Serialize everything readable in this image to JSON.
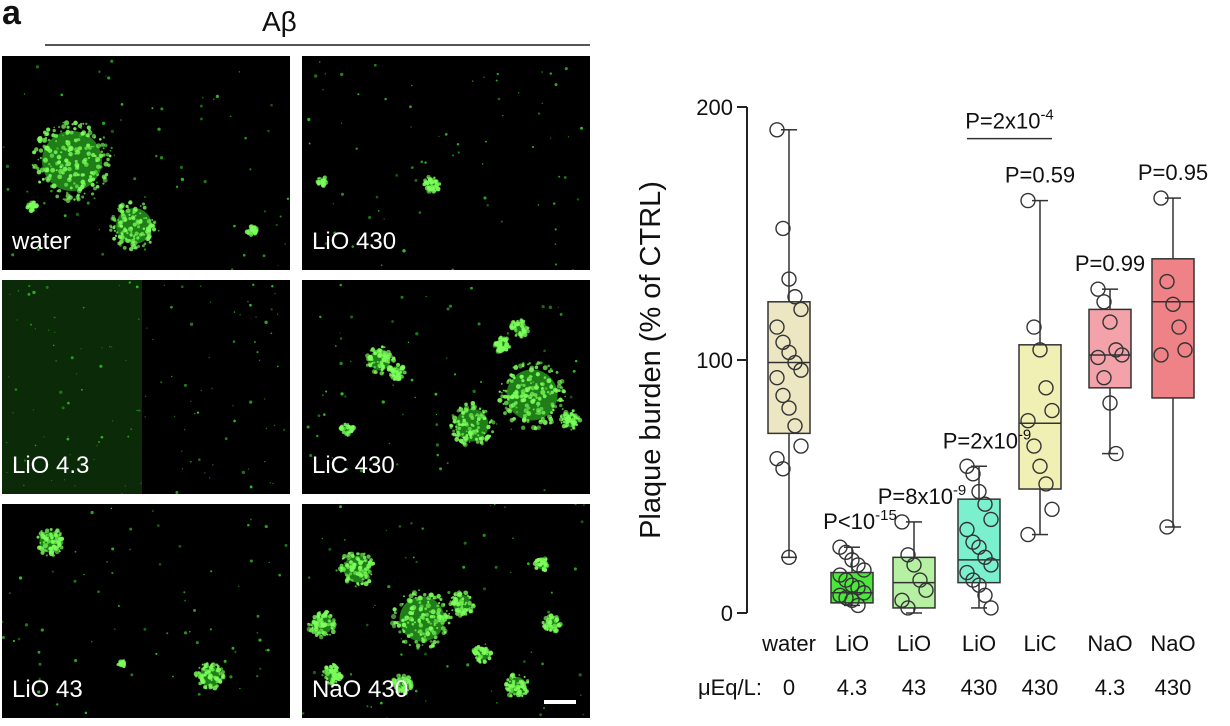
{
  "panel": {
    "letter": "a",
    "title": "Aβ"
  },
  "images": [
    {
      "label": "water"
    },
    {
      "label": "LiO 430"
    },
    {
      "label": "LiO 4.3"
    },
    {
      "label": "LiC 430"
    },
    {
      "label": "LiO 43"
    },
    {
      "label": "NaO 430"
    }
  ],
  "colors": {
    "fluorescence": "#39e62a",
    "box_fills": [
      "#ede6c2",
      "#4ce63c",
      "#b6f0a2",
      "#7af0cf",
      "#f0f0b4",
      "#f2a2a8",
      "#ee8286"
    ]
  },
  "chart_data": {
    "type": "box",
    "ylabel": "Plaque burden (% of CTRL)",
    "ylim": [
      0,
      200
    ],
    "yticks": [
      0,
      100,
      200
    ],
    "dose_label": "μEq/L:",
    "categories": [
      "water",
      "LiO",
      "LiO",
      "LiO",
      "LiC",
      "NaO",
      "NaO"
    ],
    "doses": [
      "0",
      "4.3",
      "43",
      "430",
      "430",
      "4.3",
      "430"
    ],
    "boxes": [
      {
        "min": 22,
        "q1": 71,
        "median": 99,
        "q3": 123,
        "max": 191,
        "points": [
          191,
          152,
          132,
          125,
          120,
          113,
          107,
          103,
          99,
          96,
          93,
          86,
          81,
          74,
          66,
          61,
          57,
          22
        ]
      },
      {
        "min": 3,
        "q1": 4,
        "median": 8,
        "q3": 16,
        "max": 26,
        "points": [
          26,
          24,
          21,
          19,
          17,
          15,
          13,
          11,
          10,
          8,
          7,
          6,
          5,
          3
        ]
      },
      {
        "min": 0,
        "q1": 2,
        "median": 12,
        "q3": 22,
        "max": 36,
        "points": [
          36,
          23,
          19,
          13,
          9,
          5,
          2
        ]
      },
      {
        "min": 2,
        "q1": 12,
        "median": 21,
        "q3": 45,
        "max": 58,
        "points": [
          58,
          55,
          48,
          43,
          37,
          33,
          28,
          26,
          22,
          19,
          16,
          13,
          11,
          7,
          2
        ]
      },
      {
        "min": 31,
        "q1": 49,
        "median": 75,
        "q3": 106,
        "max": 163,
        "points": [
          163,
          113,
          104,
          89,
          80,
          76,
          66,
          58,
          51,
          41,
          31
        ]
      },
      {
        "min": 63,
        "q1": 89,
        "median": 102,
        "q3": 120,
        "max": 128,
        "points": [
          128,
          123,
          115,
          104,
          102,
          101,
          93,
          83,
          63
        ]
      },
      {
        "min": 34,
        "q1": 85,
        "median": 123,
        "q3": 140,
        "max": 164,
        "points": [
          164,
          131,
          122,
          113,
          104,
          102,
          34
        ]
      }
    ],
    "annotations": [
      {
        "box": 1,
        "base": "P<10",
        "sup": "-15"
      },
      {
        "box": 2,
        "base": "P=8x10",
        "sup": "-9"
      },
      {
        "box": 3,
        "base": "P=2x10",
        "sup": "-9"
      },
      {
        "box": 4,
        "base": "P=0.59",
        "sup": ""
      },
      {
        "box": 5,
        "base": "P=0.99",
        "sup": ""
      },
      {
        "box": 6,
        "base": "P=0.95",
        "sup": ""
      }
    ],
    "bracket": {
      "from": 3,
      "to": 4,
      "base": "P=2x10",
      "sup": "-4"
    }
  }
}
